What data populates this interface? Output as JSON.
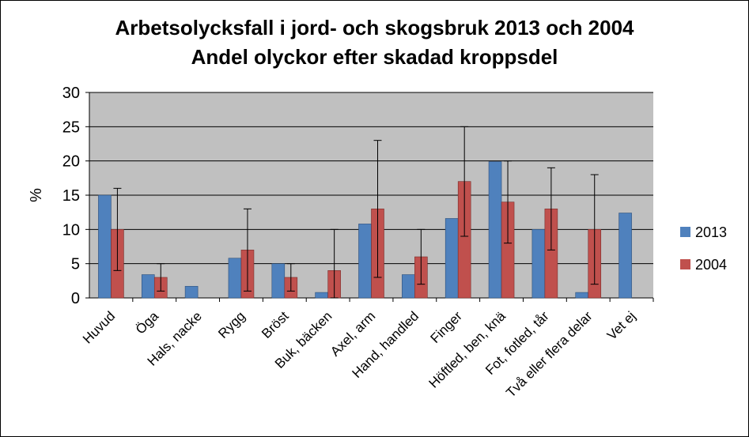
{
  "chart_data": {
    "type": "bar",
    "title": "Arbetsolycksfall i jord- och skogsbruk 2013 och 2004",
    "subtitle": "Andel olyckor efter skadad kroppsdel",
    "xlabel": "",
    "ylabel": "%",
    "ylim": [
      0,
      30
    ],
    "yticks": [
      0,
      5,
      10,
      15,
      20,
      25,
      30
    ],
    "grid": true,
    "legend_position": "right",
    "categories": [
      "Huvud",
      "Öga",
      "Hals, nacke",
      "Rygg",
      "Bröst",
      "Buk, bäcken",
      "Axel, arm",
      "Hand, handled",
      "Finger",
      "Höftled, ben, knä",
      "Fot, fotled, tår",
      "Två eller flera delar",
      "Vet ej"
    ],
    "series": [
      {
        "name": "2013",
        "color": "#4f81bd",
        "values": [
          15.0,
          3.4,
          1.7,
          5.8,
          5.0,
          0.8,
          10.8,
          3.4,
          11.6,
          19.9,
          10.0,
          0.8,
          12.4
        ]
      },
      {
        "name": "2004",
        "color": "#c0504d",
        "values": [
          10.0,
          3.0,
          null,
          7.0,
          3.0,
          4.0,
          13.0,
          6.0,
          17.0,
          14.0,
          13.0,
          10.0,
          null
        ],
        "error_low": [
          4.0,
          1.0,
          null,
          1.0,
          1.0,
          0.0,
          3.0,
          2.0,
          9.0,
          8.0,
          7.0,
          2.0,
          null
        ],
        "error_high": [
          16.0,
          5.0,
          null,
          13.0,
          5.0,
          10.0,
          23.0,
          10.0,
          25.0,
          20.0,
          19.0,
          18.0,
          null
        ]
      }
    ]
  }
}
